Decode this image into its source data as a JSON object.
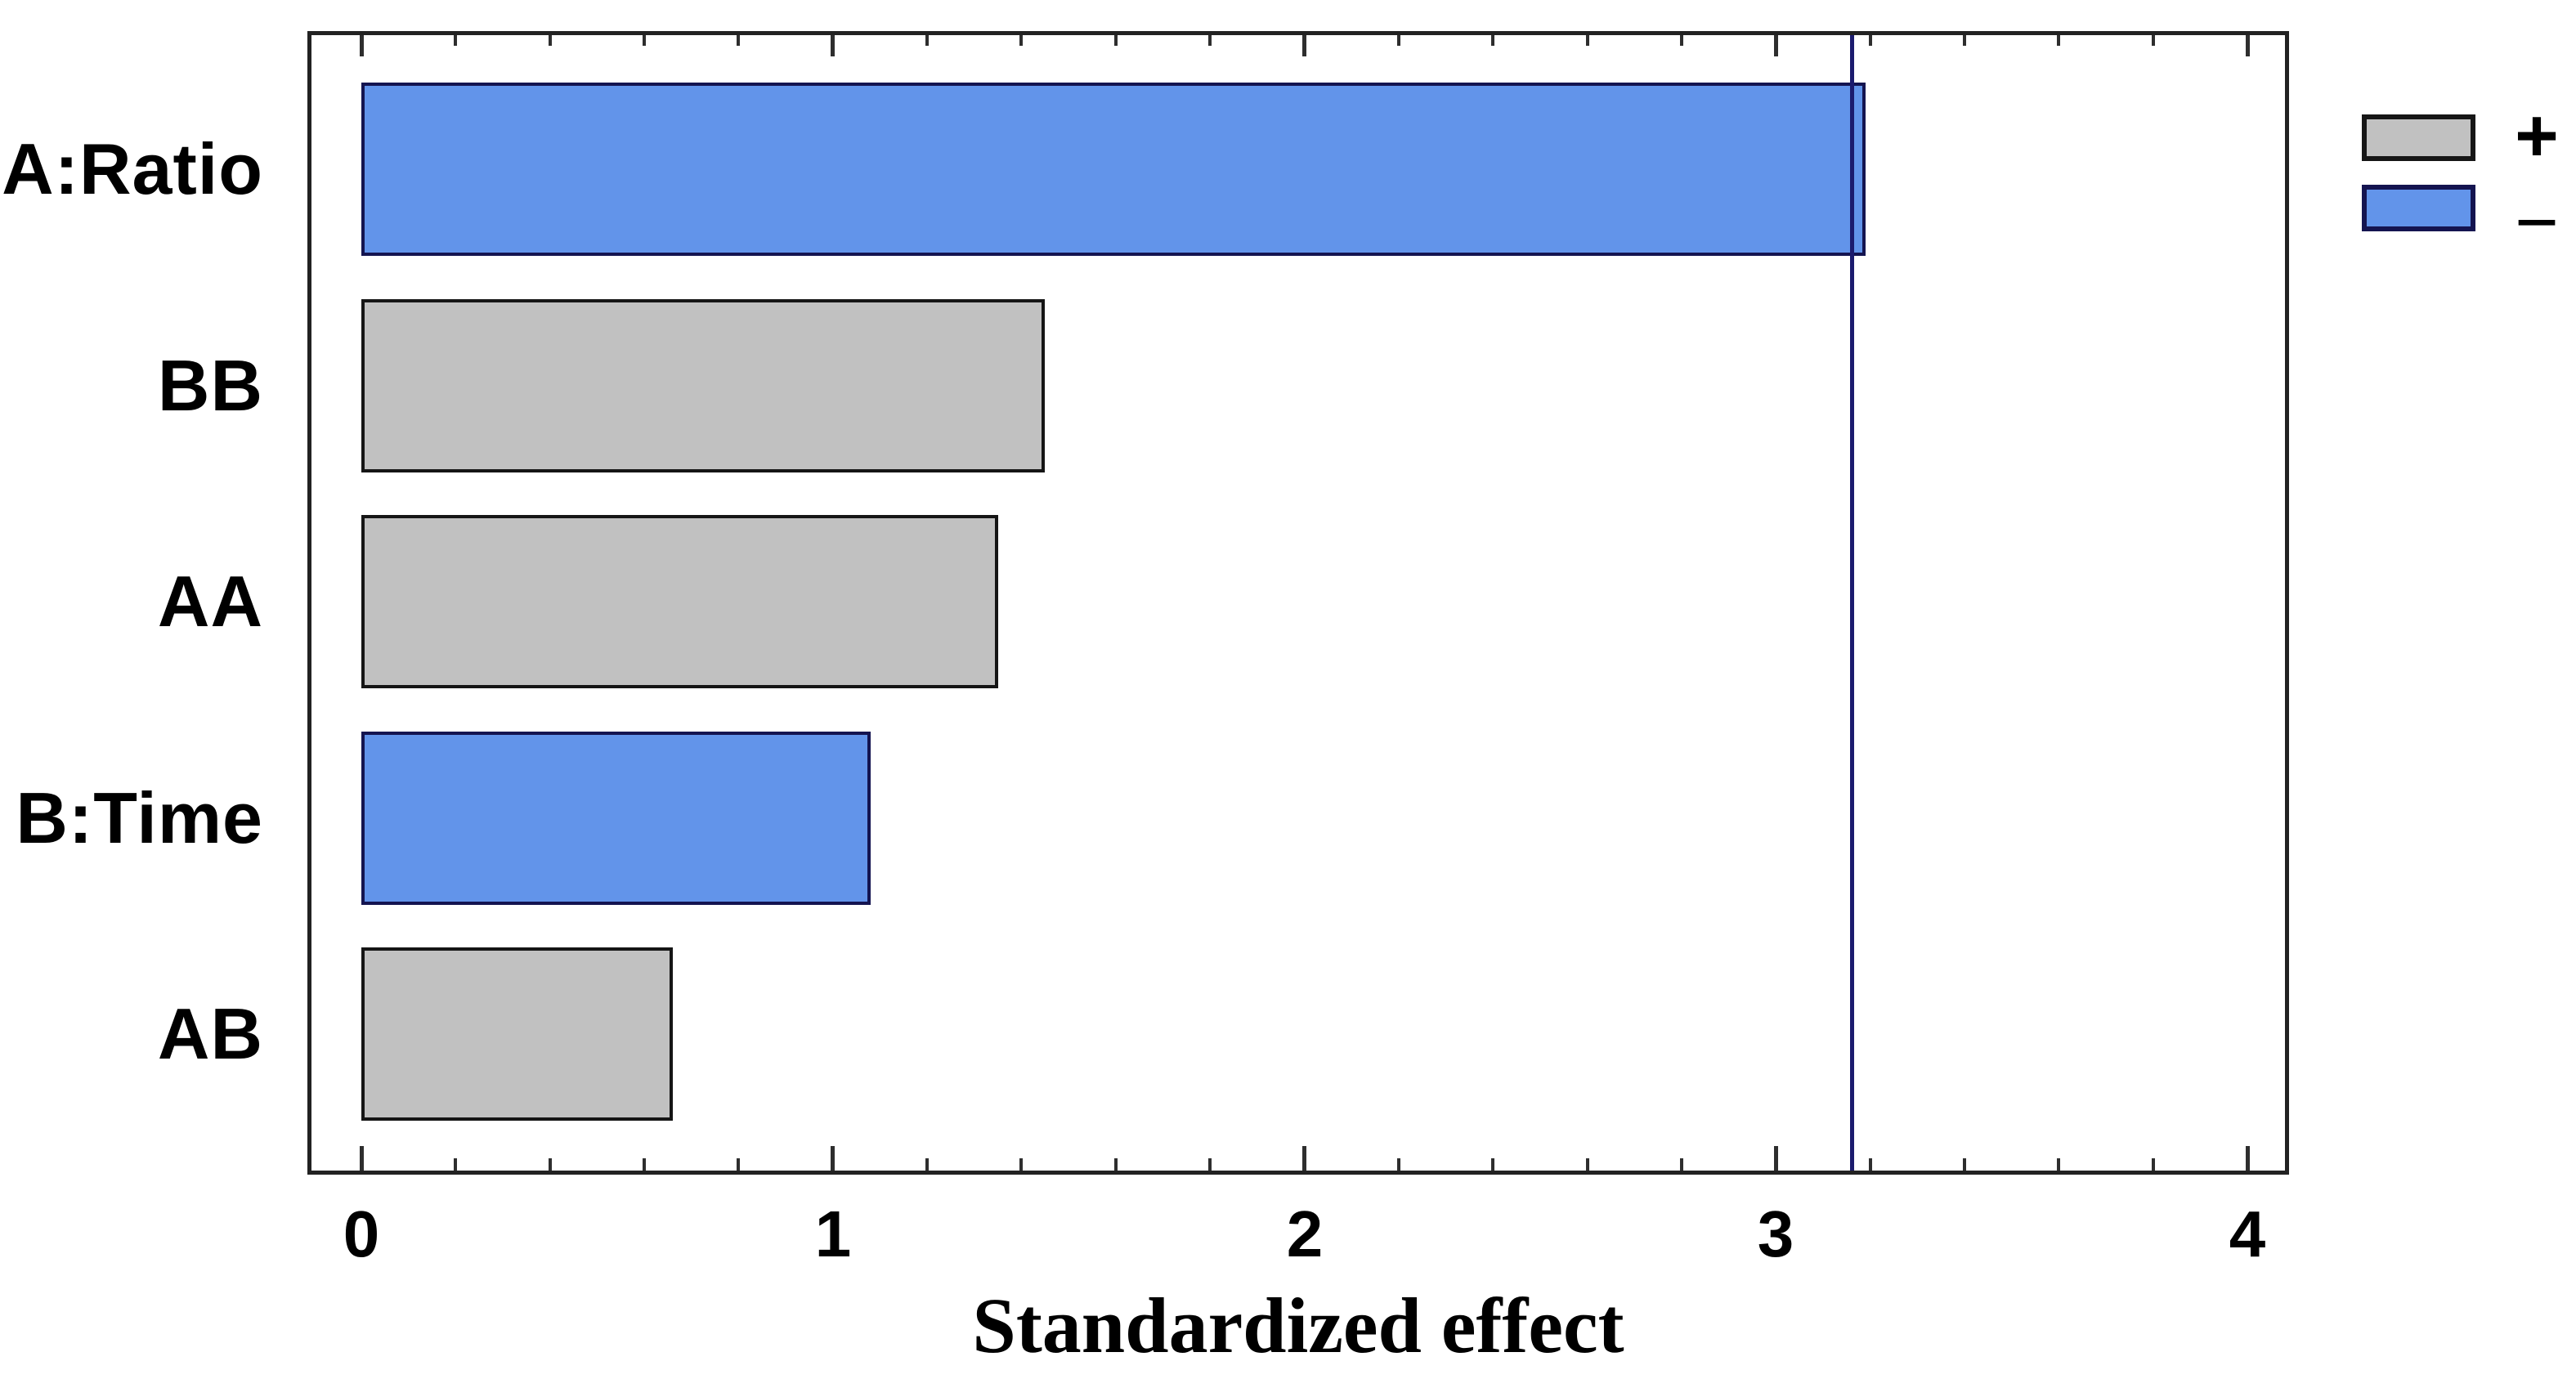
{
  "figure": {
    "background": "#ffffff"
  },
  "chart_data": {
    "type": "bar",
    "orientation": "horizontal",
    "title": "",
    "xlabel": "Standardized effect",
    "ylabel": "",
    "categories": [
      "A:Ratio",
      "BB",
      "AA",
      "B:Time",
      "AB"
    ],
    "values": [
      3.19,
      1.45,
      1.35,
      1.08,
      0.66
    ],
    "signs": [
      "-",
      "+",
      "+",
      "-",
      "+"
    ],
    "reference_line": 3.16,
    "xlim": [
      0,
      4.09
    ],
    "x_major_ticks": [
      "0",
      "1",
      "2",
      "3",
      "4"
    ],
    "x_major_tick_values": [
      0,
      1,
      2,
      3,
      4
    ],
    "x_minor_tick_step": 0.2,
    "grid": false,
    "legend": {
      "position": "top-right-outside",
      "entries": [
        {
          "label": "+",
          "color": "#C1C1C1",
          "border": "#161616"
        },
        {
          "label": "−",
          "color": "#6294EA",
          "border": "#141450"
        }
      ]
    },
    "colors": {
      "positive_fill": "#C1C1C1",
      "positive_border": "#151515",
      "negative_fill": "#6294EA",
      "negative_border": "#141450",
      "reference_line": "#1b1b6e",
      "axis": "#222222",
      "text": "#000000"
    }
  }
}
